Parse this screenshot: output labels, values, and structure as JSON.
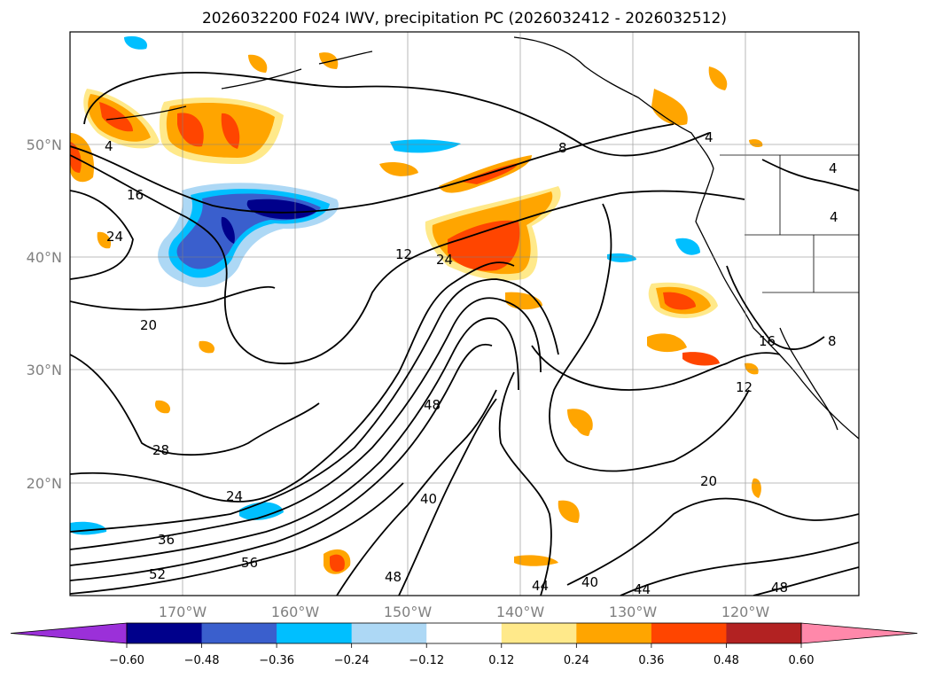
{
  "title": "2026032200 F024 IWV, precipitation PC (2026032412 - 2026032512)",
  "map": {
    "lat_labels": [
      "50°N",
      "40°N",
      "30°N",
      "20°N"
    ],
    "lon_labels": [
      "170°W",
      "160°W",
      "150°W",
      "140°W",
      "130°W",
      "120°W"
    ],
    "lat_range": [
      10,
      60
    ],
    "lon_range": [
      -180,
      -110
    ],
    "gridlines": true,
    "contour_labels": [
      "4",
      "16",
      "24",
      "20",
      "28",
      "24",
      "36",
      "52",
      "56",
      "12",
      "24",
      "8",
      "48",
      "40",
      "40",
      "44",
      "44",
      "48",
      "20",
      "12",
      "16",
      "8",
      "4",
      "4",
      "4",
      "48"
    ]
  },
  "colorbar": {
    "ticks": [
      "−0.60",
      "−0.48",
      "−0.36",
      "−0.24",
      "−0.12",
      "0.12",
      "0.24",
      "0.36",
      "0.48",
      "0.60"
    ],
    "colors": [
      "#9b30d9",
      "#00008b",
      "#3a5fcd",
      "#00bfff",
      "#add8f5",
      "#ffffff",
      "#ffe98a",
      "#ffa500",
      "#ff4500",
      "#b22222",
      "#ff88aa"
    ],
    "extend": "both"
  },
  "chart_data": {
    "type": "contour",
    "fields": [
      "IWV contours",
      "precipitation PC fill"
    ],
    "iwv_contour_levels": [
      4,
      8,
      12,
      16,
      20,
      24,
      28,
      32,
      36,
      40,
      44,
      48,
      52,
      56
    ],
    "pc_fill_levels": [
      -0.6,
      -0.48,
      -0.36,
      -0.24,
      -0.12,
      0.12,
      0.24,
      0.36,
      0.48,
      0.6
    ]
  }
}
